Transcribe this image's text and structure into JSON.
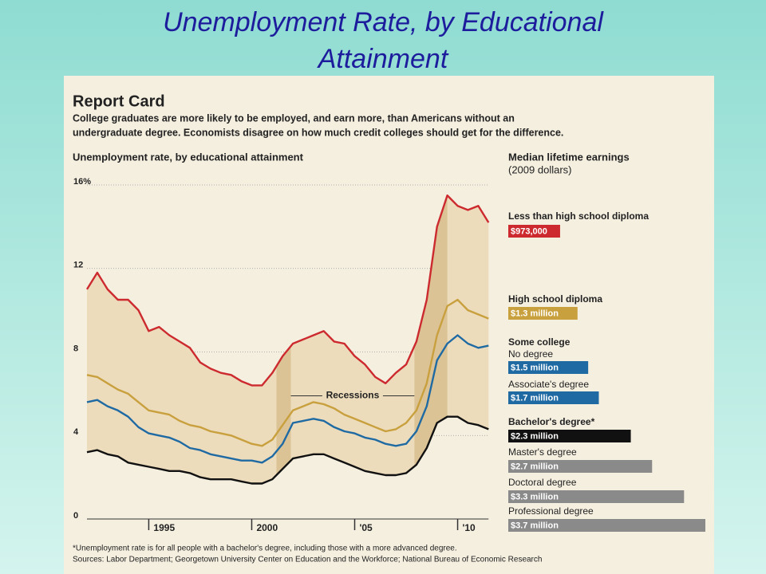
{
  "slide_title": [
    "Unemployment Rate, by Educational",
    "Attainment"
  ],
  "chart_data": {
    "type": "line",
    "title": "Report Card",
    "subtitle": [
      "College graduates are more likely to be employed, and earn more, than Americans without an",
      "undergraduate degree. Economists disagree on how much credit colleges should get for the difference."
    ],
    "y_label": "Unemployment rate, by educational attainment",
    "x": [
      1992,
      1992.5,
      1993,
      1993.5,
      1994,
      1994.5,
      1995,
      1995.5,
      1996,
      1996.5,
      1997,
      1997.5,
      1998,
      1998.5,
      1999,
      1999.5,
      2000,
      2000.5,
      2001,
      2001.5,
      2002,
      2002.5,
      2003,
      2003.5,
      2004,
      2004.5,
      2005,
      2005.5,
      2006,
      2006.5,
      2007,
      2007.5,
      2008,
      2008.5,
      2009,
      2009.5,
      2010,
      2010.5,
      2011,
      2011.5
    ],
    "series": [
      {
        "name": "Less than high school diploma",
        "color": "#cc2a2e",
        "values": [
          11,
          11.8,
          11,
          10.5,
          10.5,
          10,
          9,
          9.2,
          8.8,
          8.5,
          8.2,
          7.5,
          7.2,
          7,
          6.9,
          6.6,
          6.4,
          6.4,
          7.0,
          7.8,
          8.4,
          8.6,
          8.8,
          9.0,
          8.5,
          8.4,
          7.8,
          7.4,
          6.8,
          6.5,
          7.0,
          7.4,
          8.5,
          10.5,
          14,
          15.5,
          15,
          14.8,
          15,
          14.2
        ]
      },
      {
        "name": "High school diploma",
        "color": "#c9a03e",
        "values": [
          6.9,
          6.8,
          6.5,
          6.2,
          6.0,
          5.6,
          5.2,
          5.1,
          5.0,
          4.7,
          4.5,
          4.4,
          4.2,
          4.1,
          4.0,
          3.8,
          3.6,
          3.5,
          3.8,
          4.5,
          5.2,
          5.4,
          5.6,
          5.5,
          5.3,
          5.0,
          4.8,
          4.6,
          4.4,
          4.2,
          4.3,
          4.6,
          5.2,
          6.5,
          8.8,
          10.2,
          10.5,
          10.0,
          9.8,
          9.6
        ]
      },
      {
        "name": "Some college",
        "color": "#1f6aa3",
        "values": [
          5.6,
          5.7,
          5.4,
          5.2,
          4.9,
          4.4,
          4.1,
          4.0,
          3.9,
          3.7,
          3.4,
          3.3,
          3.1,
          3.0,
          2.9,
          2.8,
          2.8,
          2.7,
          3.0,
          3.6,
          4.6,
          4.7,
          4.8,
          4.7,
          4.4,
          4.2,
          4.1,
          3.9,
          3.8,
          3.6,
          3.5,
          3.6,
          4.2,
          5.4,
          7.6,
          8.4,
          8.8,
          8.4,
          8.2,
          8.3
        ]
      },
      {
        "name": "Bachelor's degree",
        "color": "#111111",
        "values": [
          3.2,
          3.3,
          3.1,
          3.0,
          2.7,
          2.6,
          2.5,
          2.4,
          2.3,
          2.3,
          2.2,
          2.0,
          1.9,
          1.9,
          1.9,
          1.8,
          1.7,
          1.7,
          1.9,
          2.4,
          2.9,
          3.0,
          3.1,
          3.1,
          2.9,
          2.7,
          2.5,
          2.3,
          2.2,
          2.1,
          2.1,
          2.2,
          2.6,
          3.4,
          4.6,
          4.9,
          4.9,
          4.6,
          4.5,
          4.3
        ]
      }
    ],
    "band_color": "#eddcbc",
    "recessions": [
      {
        "start": 2001.2,
        "end": 2001.9
      },
      {
        "start": 2007.9,
        "end": 2009.5
      }
    ],
    "recession_color": "#dcc396",
    "recession_label": "Recessions",
    "xlim": [
      1992,
      2011.8
    ],
    "xticks": [
      1995,
      2000,
      {
        "value": 2005,
        "label": "'05"
      },
      {
        "value": 2010,
        "label": "'10"
      }
    ],
    "ylim": [
      0,
      16
    ],
    "yticks": [
      0,
      4,
      8,
      12,
      {
        "value": 16,
        "label": "16%"
      }
    ],
    "grid": true,
    "earnings": {
      "title": "Median lifetime earnings",
      "subtitle": "(2009 dollars)",
      "items": [
        {
          "heading": "Less than high school diploma",
          "value": 973000,
          "value_label": "$973,000",
          "color": "#cc2a2e"
        },
        {
          "heading": "High school diploma",
          "value": 1300000,
          "value_label": "$1.3 million",
          "color": "#c9a03e"
        },
        {
          "heading": "Some college",
          "name": "No degree",
          "value": 1500000,
          "value_label": "$1.5 million",
          "color": "#1f6aa3"
        },
        {
          "name": "Associate's degree",
          "value": 1700000,
          "value_label": "$1.7 million",
          "color": "#1f6aa3"
        },
        {
          "heading": "Bachelor's degree*",
          "value": 2300000,
          "value_label": "$2.3 million",
          "color": "#111111"
        },
        {
          "name": "Master's degree",
          "value": 2700000,
          "value_label": "$2.7 million",
          "color": "#8a8a8a"
        },
        {
          "name": "Doctoral degree",
          "value": 3300000,
          "value_label": "$3.3 million",
          "color": "#8a8a8a"
        },
        {
          "name": "Professional degree",
          "value": 3700000,
          "value_label": "$3.7 million",
          "color": "#8a8a8a"
        }
      ]
    },
    "footnotes": [
      "*Unemployment rate is for all people with a bachelor's degree, including those with a more advanced degree.",
      "Sources: Labor Department; Georgetown University Center on Education and the Workforce; National Bureau of Economic Research"
    ]
  }
}
